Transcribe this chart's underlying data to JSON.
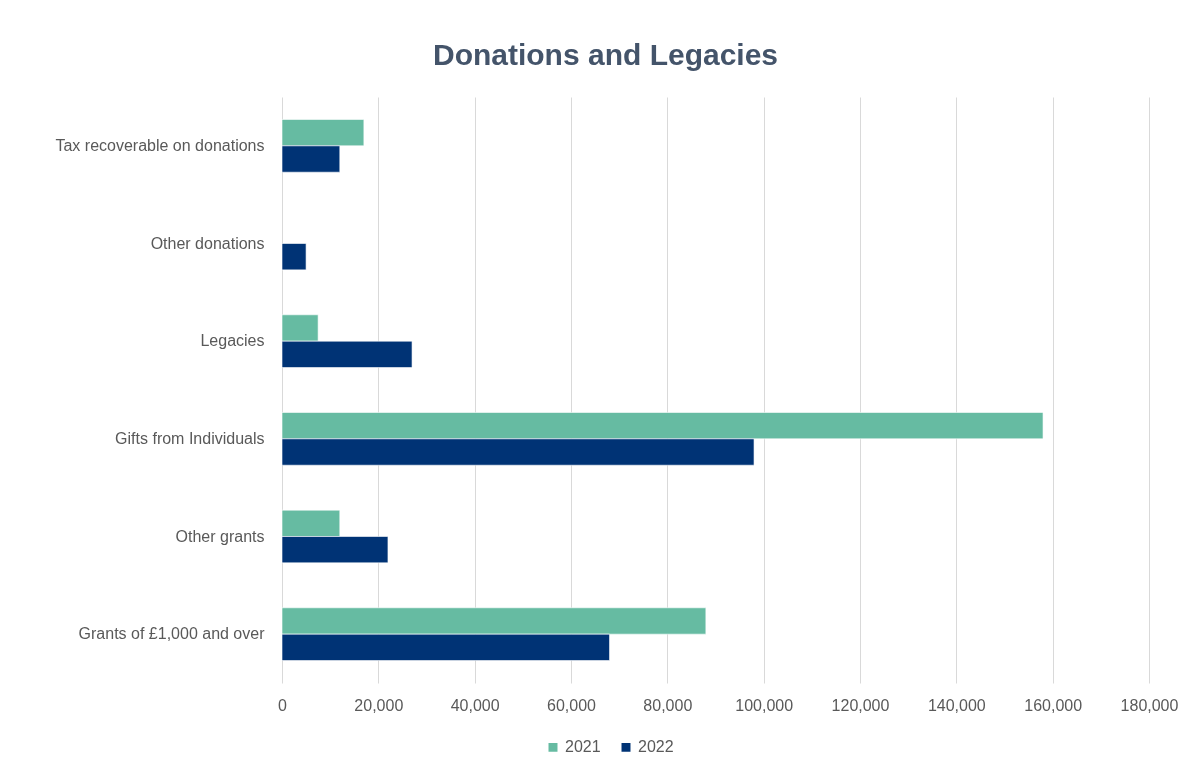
{
  "chart_data": {
    "type": "bar",
    "orientation": "horizontal",
    "title": "Donations and Legacies",
    "categories": [
      "Tax recoverable on donations",
      "Other donations",
      "Legacies",
      "Gifts from Individuals",
      "Other grants",
      "Grants of £1,000 and over"
    ],
    "series": [
      {
        "name": "2021",
        "color": "#66bba2",
        "values": [
          17000,
          null,
          7500,
          158000,
          12000,
          88000
        ]
      },
      {
        "name": "2022",
        "color": "#003375",
        "values": [
          12000,
          5000,
          27000,
          98000,
          22000,
          68000
        ]
      }
    ],
    "xlim": [
      0,
      180000
    ],
    "xticks": [
      0,
      {
        "value": 20000,
        "label": "20,000"
      },
      {
        "value": 40000,
        "label": "40,000"
      },
      {
        "value": 60000,
        "label": "60,000"
      },
      {
        "value": 80000,
        "label": "80,000"
      },
      {
        "value": 100000,
        "label": "100,000"
      },
      {
        "value": 120000,
        "label": "120,000"
      },
      {
        "value": 140000,
        "label": "140,000"
      },
      {
        "value": 160000,
        "label": "160,000"
      },
      {
        "value": 180000,
        "label": "180,000"
      }
    ],
    "grid": "x",
    "legend": "bottom"
  }
}
